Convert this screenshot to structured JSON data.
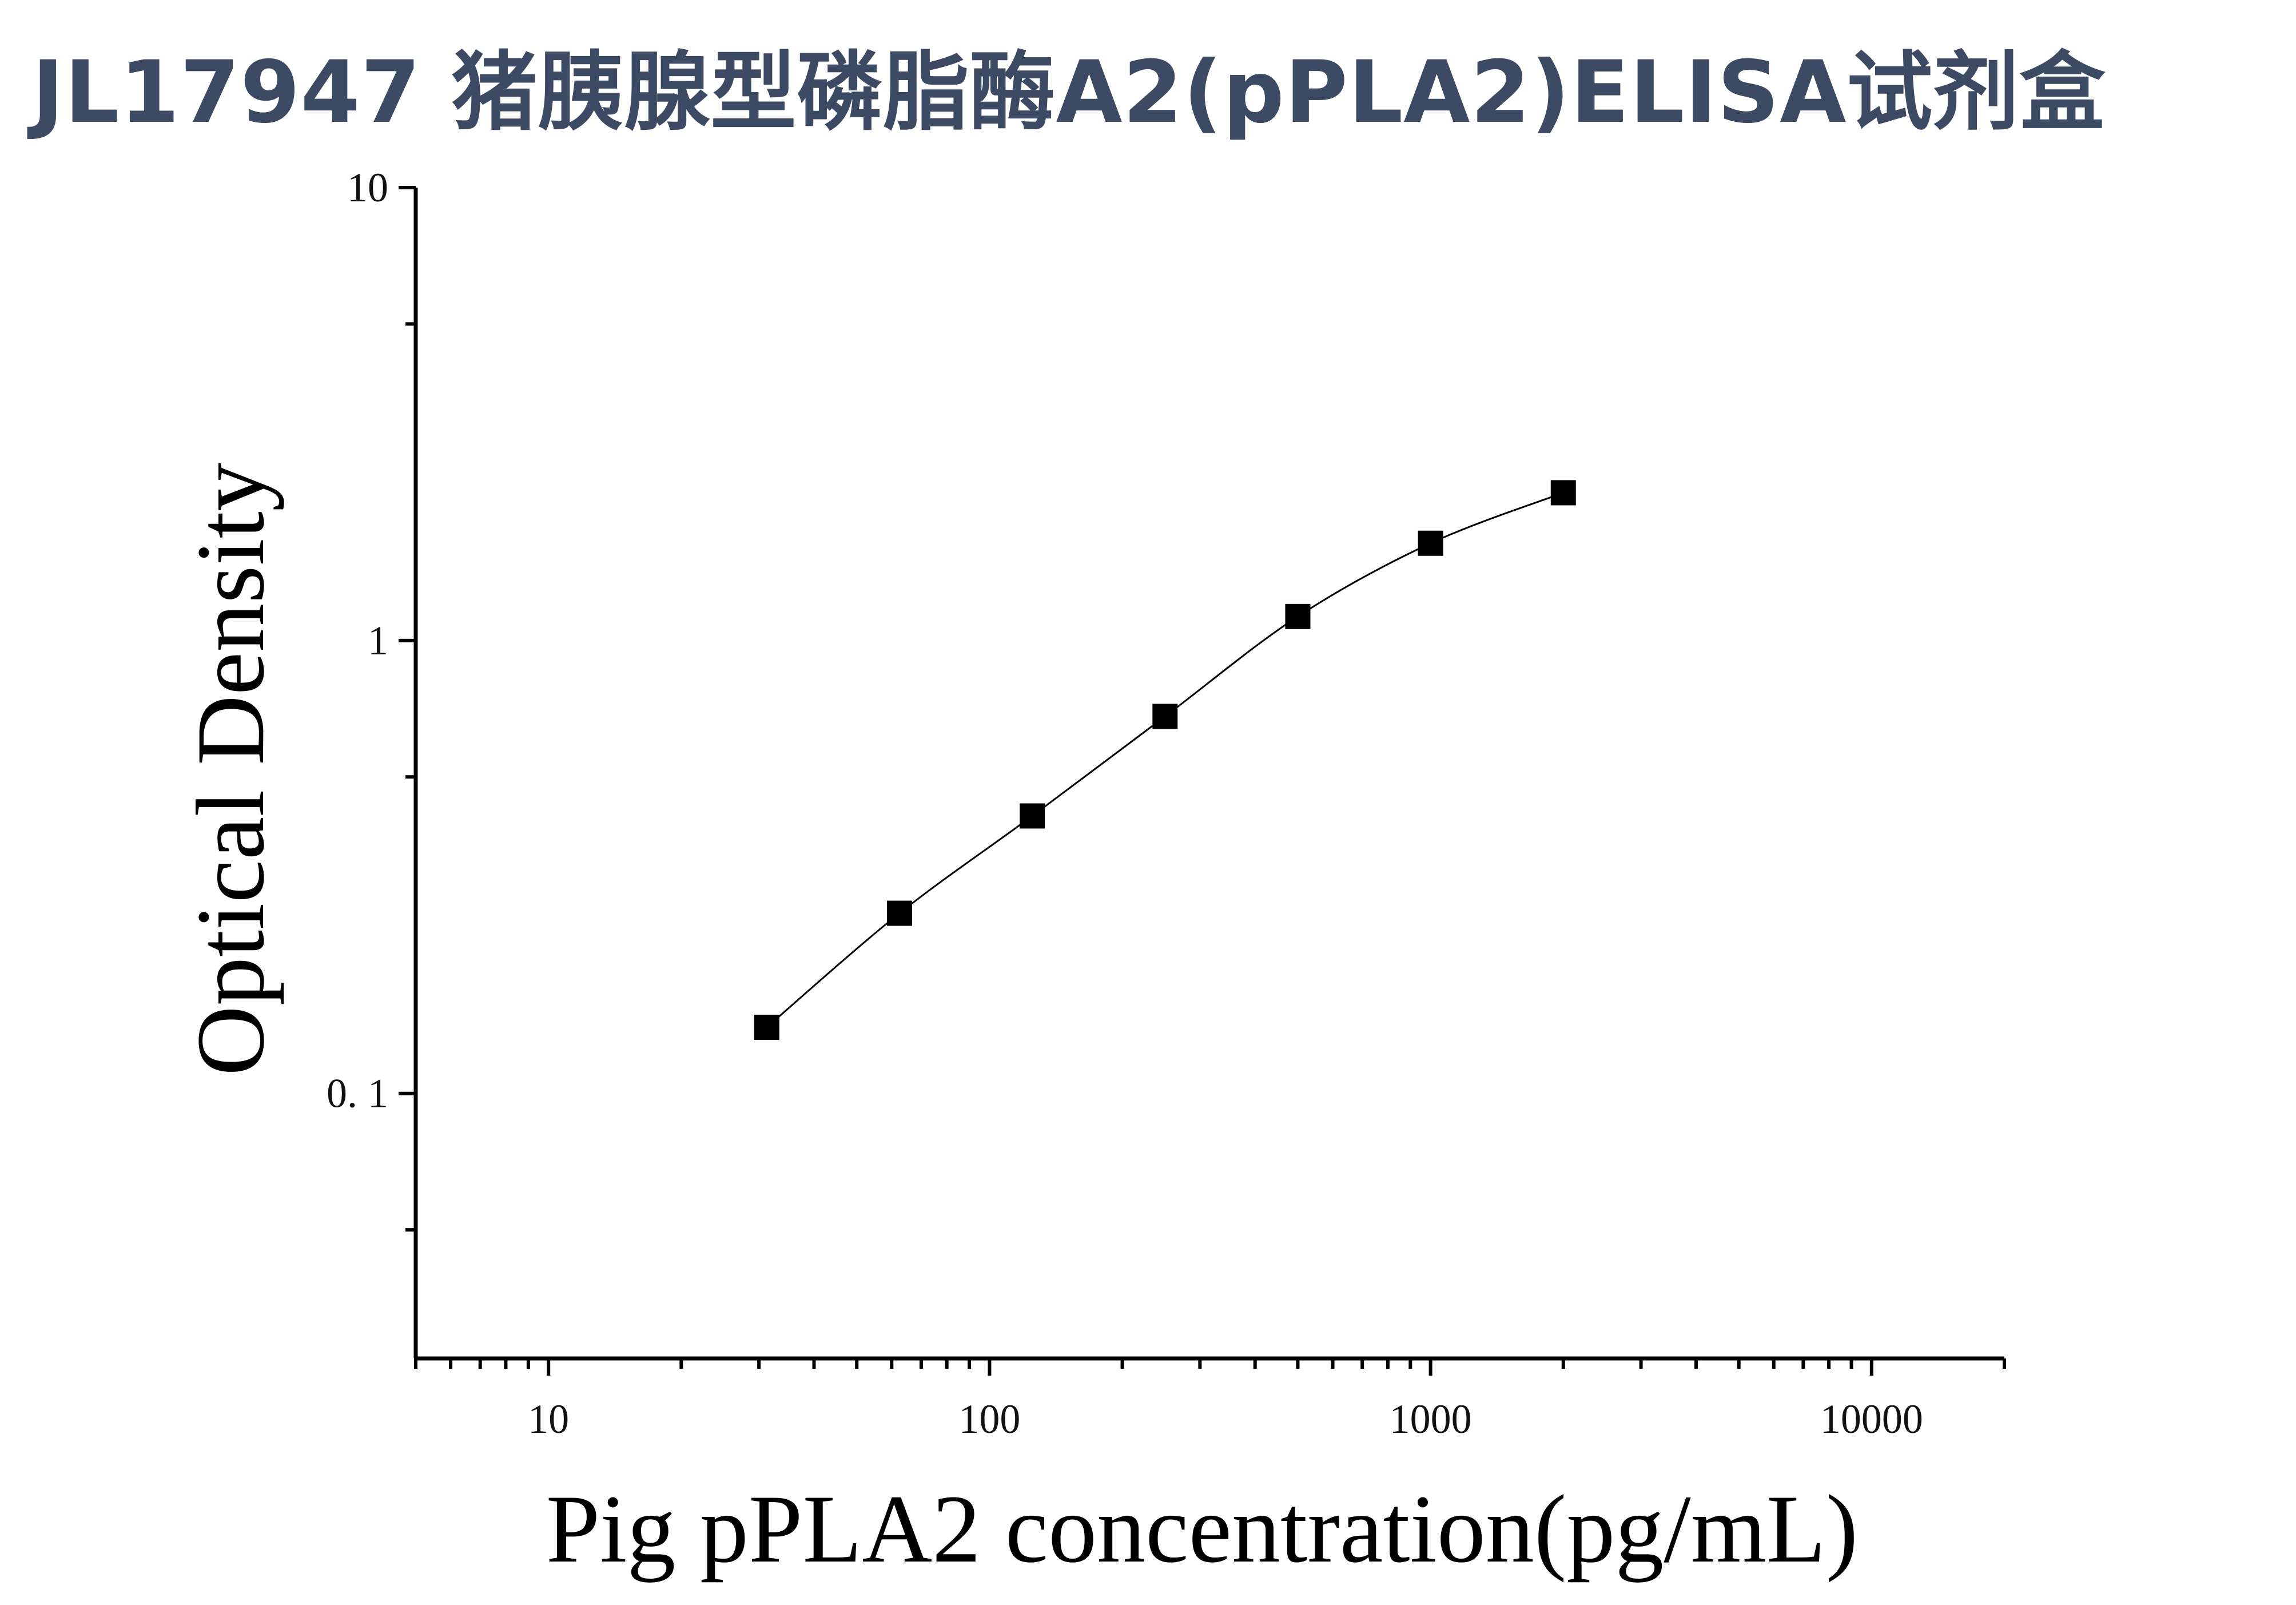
{
  "title": "JL17947 猪胰腺型磷脂酶A2(pPLA2)ELISA试剂盒",
  "chart_data": {
    "type": "scatter",
    "xlabel": "Pig pPLA2 concentration(pg/mL)",
    "ylabel": "Optical Density",
    "x_scale": "log",
    "y_scale": "log",
    "xlim": [
      5,
      20000
    ],
    "ylim": [
      0.026,
      10
    ],
    "x_ticks": [
      {
        "value": 10,
        "label": "10"
      },
      {
        "value": 100,
        "label": "100"
      },
      {
        "value": 1000,
        "label": "1000"
      },
      {
        "value": 10000,
        "label": "10000"
      }
    ],
    "y_ticks": [
      {
        "value": 0.1,
        "label": "0. 1"
      },
      {
        "value": 1,
        "label": "1"
      },
      {
        "value": 10,
        "label": "10"
      }
    ],
    "series": [
      {
        "marker": "square",
        "color": "#000000",
        "points": [
          {
            "x": 31.25,
            "y": 0.14
          },
          {
            "x": 62.5,
            "y": 0.25
          },
          {
            "x": 125,
            "y": 0.41
          },
          {
            "x": 250,
            "y": 0.68
          },
          {
            "x": 500,
            "y": 1.13
          },
          {
            "x": 1000,
            "y": 1.64
          },
          {
            "x": 2000,
            "y": 2.12
          }
        ]
      }
    ],
    "fit_curve": true,
    "grid": false,
    "legend": "none"
  }
}
